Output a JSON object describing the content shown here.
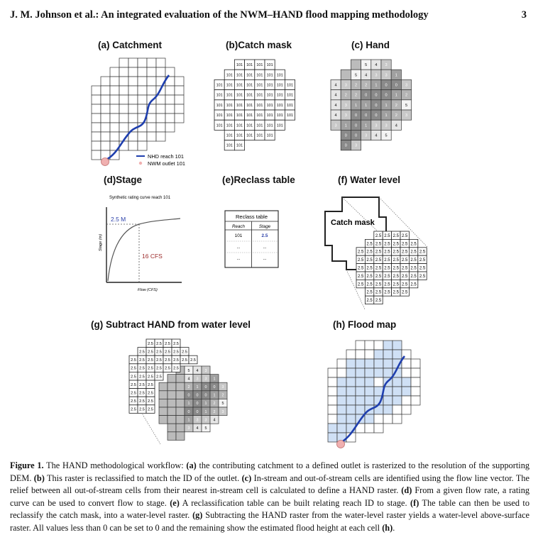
{
  "header": {
    "running_title": "J. M. Johnson et al.: An integrated evaluation of the NWM–HAND flood mapping methodology",
    "page_number": "3"
  },
  "panels": {
    "a": {
      "label": "(a) Catchment",
      "legend_reach": "NHD reach 101",
      "legend_outlet": "NWM outlet 101"
    },
    "b": {
      "label": "(b)Catch mask",
      "cell_value": "101"
    },
    "c": {
      "label": "(c) Hand"
    },
    "d": {
      "label": "(d)Stage",
      "title": "Synthetic rating curve reach 101",
      "ylabel": "Stage (m)",
      "xlabel": "Flow (CFS)",
      "stage_label": "2.5 M",
      "flow_label": "16 CFS"
    },
    "e": {
      "label": "(e)Reclass table",
      "table_title": "Reclass table",
      "col_reach": "Reach",
      "col_stage": "Stage",
      "row_reach": "101",
      "row_stage": "2.5",
      "ellipsis": "..."
    },
    "f": {
      "label": "(f) Water level",
      "mask_label": "Catch mask",
      "cell_value": "2.5"
    },
    "g": {
      "label": "(g) Subtract HAND from water level"
    },
    "h": {
      "label": "(h) Flood map"
    }
  },
  "hand_values": [
    [
      "",
      "",
      "",
      "5",
      "4",
      "3",
      "3",
      ""
    ],
    [
      "",
      "",
      "5",
      "4",
      "3",
      "3",
      "1",
      "0"
    ],
    [
      "4",
      "3",
      "2",
      "2",
      "1",
      "0",
      "0",
      "3"
    ],
    [
      "4",
      "2",
      "2",
      "0",
      "0",
      "0",
      "1",
      "2"
    ],
    [
      "4",
      "3",
      "1",
      "1",
      "0",
      "1",
      "2",
      "5"
    ],
    [
      "4",
      "3",
      "0",
      "0",
      "0",
      "1",
      "2",
      "3"
    ],
    [
      "3",
      "1",
      "0",
      "1",
      "3",
      "3",
      "4",
      ""
    ],
    [
      "",
      "0",
      "0",
      "3",
      "4",
      "5",
      "",
      ""
    ],
    [
      "",
      "0",
      "3",
      "",
      "",
      "",
      "",
      ""
    ]
  ],
  "subtract_values": [
    [
      "",
      "",
      "",
      "5",
      "4",
      "3",
      "3",
      ""
    ],
    [
      "",
      "",
      "",
      "4",
      "3",
      "3",
      "1",
      "0"
    ],
    [
      "",
      "",
      "",
      "2",
      "1",
      "0",
      "0",
      "3"
    ],
    [
      "",
      "",
      "",
      "0",
      "0",
      "0",
      "1",
      "2"
    ],
    [
      "",
      "",
      "",
      "1",
      "0",
      "1",
      "2",
      "5"
    ],
    [
      "",
      "",
      "",
      "0",
      "0",
      "1",
      "2",
      "3"
    ],
    [
      "",
      "",
      "",
      "1",
      "3",
      "3",
      "4",
      ""
    ],
    [
      "",
      "",
      "",
      "3",
      "4",
      "5",
      "",
      ""
    ],
    [
      "",
      "",
      "",
      "",
      "",
      "",
      "",
      ""
    ]
  ],
  "caption": {
    "fig_label": "Figure 1.",
    "intro": "The HAND methodological workflow: ",
    "a_tag": "(a)",
    "a_text": " the contributing catchment to a defined outlet is rasterized to the resolution of the supporting DEM. ",
    "b_tag": "(b)",
    "b_text": " This raster is reclassified to match the ID of the outlet. ",
    "c_tag": "(c)",
    "c_text": " In-stream and out-of-stream cells are identified using the flow line vector. The relief between all out-of-stream cells from their nearest in-stream cell is calculated to define a HAND raster. ",
    "d_tag": "(d)",
    "d_text": " From a given flow rate, a rating curve can be used to convert flow to stage. ",
    "e_tag": "(e)",
    "e_text": " A reclassification table can be built relating reach ID to stage. ",
    "f_tag": "(f)",
    "f_text": " The table can then be used to reclassify the catch mask, into a water-level raster. ",
    "g_tag": "(g)",
    "g_text": " Subtracting the HAND raster from the water-level raster yields a water-level above-surface raster. All values less than 0 can be set to 0 and the remaining show the estimated flood height at each cell ",
    "h_tag": "(h)",
    "h_end": "."
  },
  "colors": {
    "reach_line": "#1f3fae",
    "outlet": "#f0b0b0",
    "flood": "#cfe0f5",
    "stage_text": "#2a3fa8",
    "flow_text": "#9c2a2a"
  }
}
